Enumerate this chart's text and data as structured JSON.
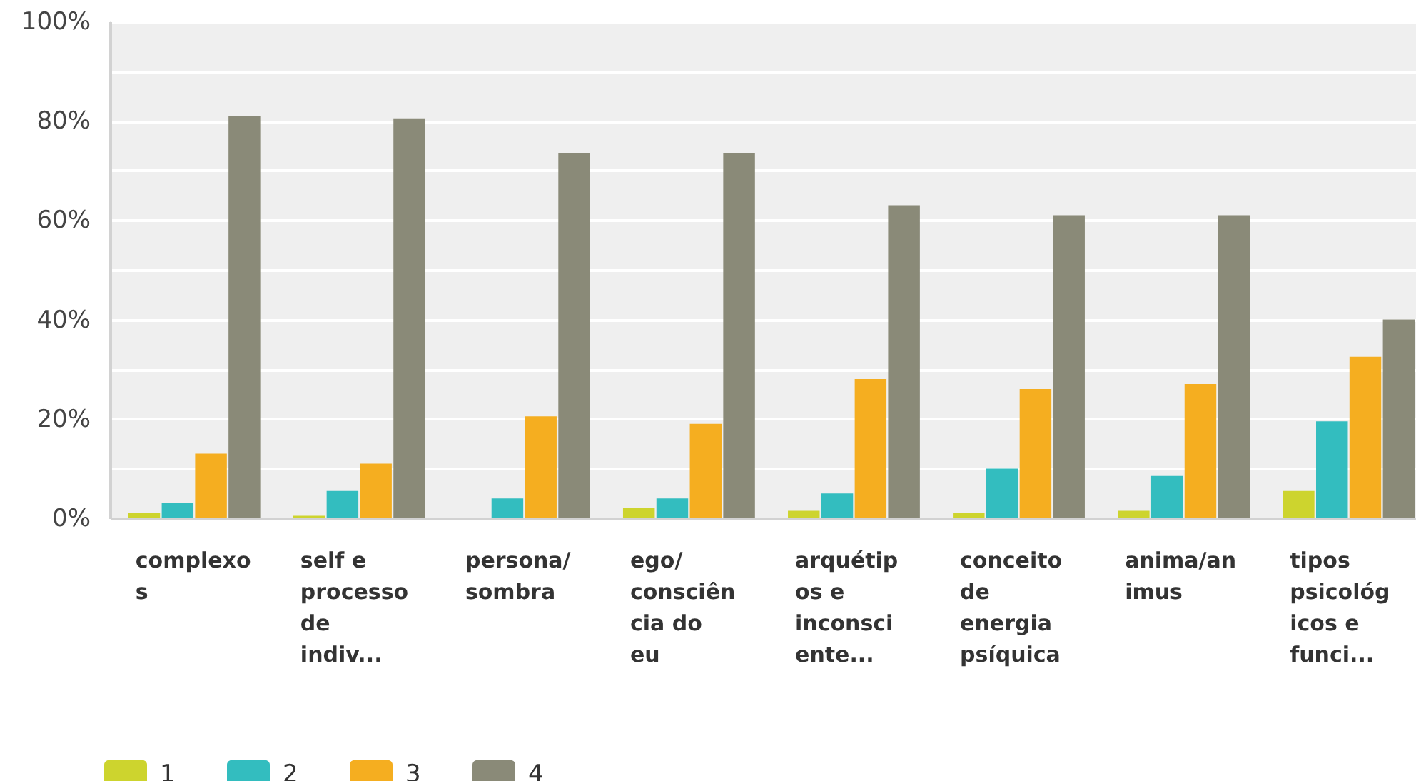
{
  "chart_data": {
    "type": "bar",
    "categories": [
      "complexos",
      "self e processo de indiv...",
      "persona/ sombra",
      "ego/ consciência do eu",
      "arquétipos e inconsciente...",
      "conceito de energia psíquica",
      "anima/animus",
      "tipos psicológicos e funci..."
    ],
    "series": [
      {
        "name": "1",
        "color": "#cdd42e",
        "values": [
          1,
          0.5,
          0,
          2,
          1.5,
          1,
          1.5,
          5.5
        ]
      },
      {
        "name": "2",
        "color": "#33bdbf",
        "values": [
          3,
          5.5,
          4,
          4,
          5,
          10,
          8.5,
          19.5
        ]
      },
      {
        "name": "3",
        "color": "#f5ae20",
        "values": [
          13,
          11,
          20.5,
          19,
          28,
          26,
          27,
          32.5
        ]
      },
      {
        "name": "4",
        "color": "#8a8a78",
        "values": [
          81,
          80.5,
          73.5,
          73.5,
          63,
          61,
          61,
          40
        ]
      }
    ],
    "ylim": [
      0,
      100
    ],
    "yticks": [
      {
        "value": 0,
        "label": "0%"
      },
      {
        "value": 10,
        "label": null
      },
      {
        "value": 20,
        "label": "20%"
      },
      {
        "value": 30,
        "label": null
      },
      {
        "value": 40,
        "label": "40%"
      },
      {
        "value": 50,
        "label": null
      },
      {
        "value": 60,
        "label": "60%"
      },
      {
        "value": 70,
        "label": null
      },
      {
        "value": 80,
        "label": "80%"
      },
      {
        "value": 90,
        "label": null
      },
      {
        "value": 100,
        "label": "100%"
      }
    ],
    "grid": "y",
    "legend": "bottom left"
  }
}
